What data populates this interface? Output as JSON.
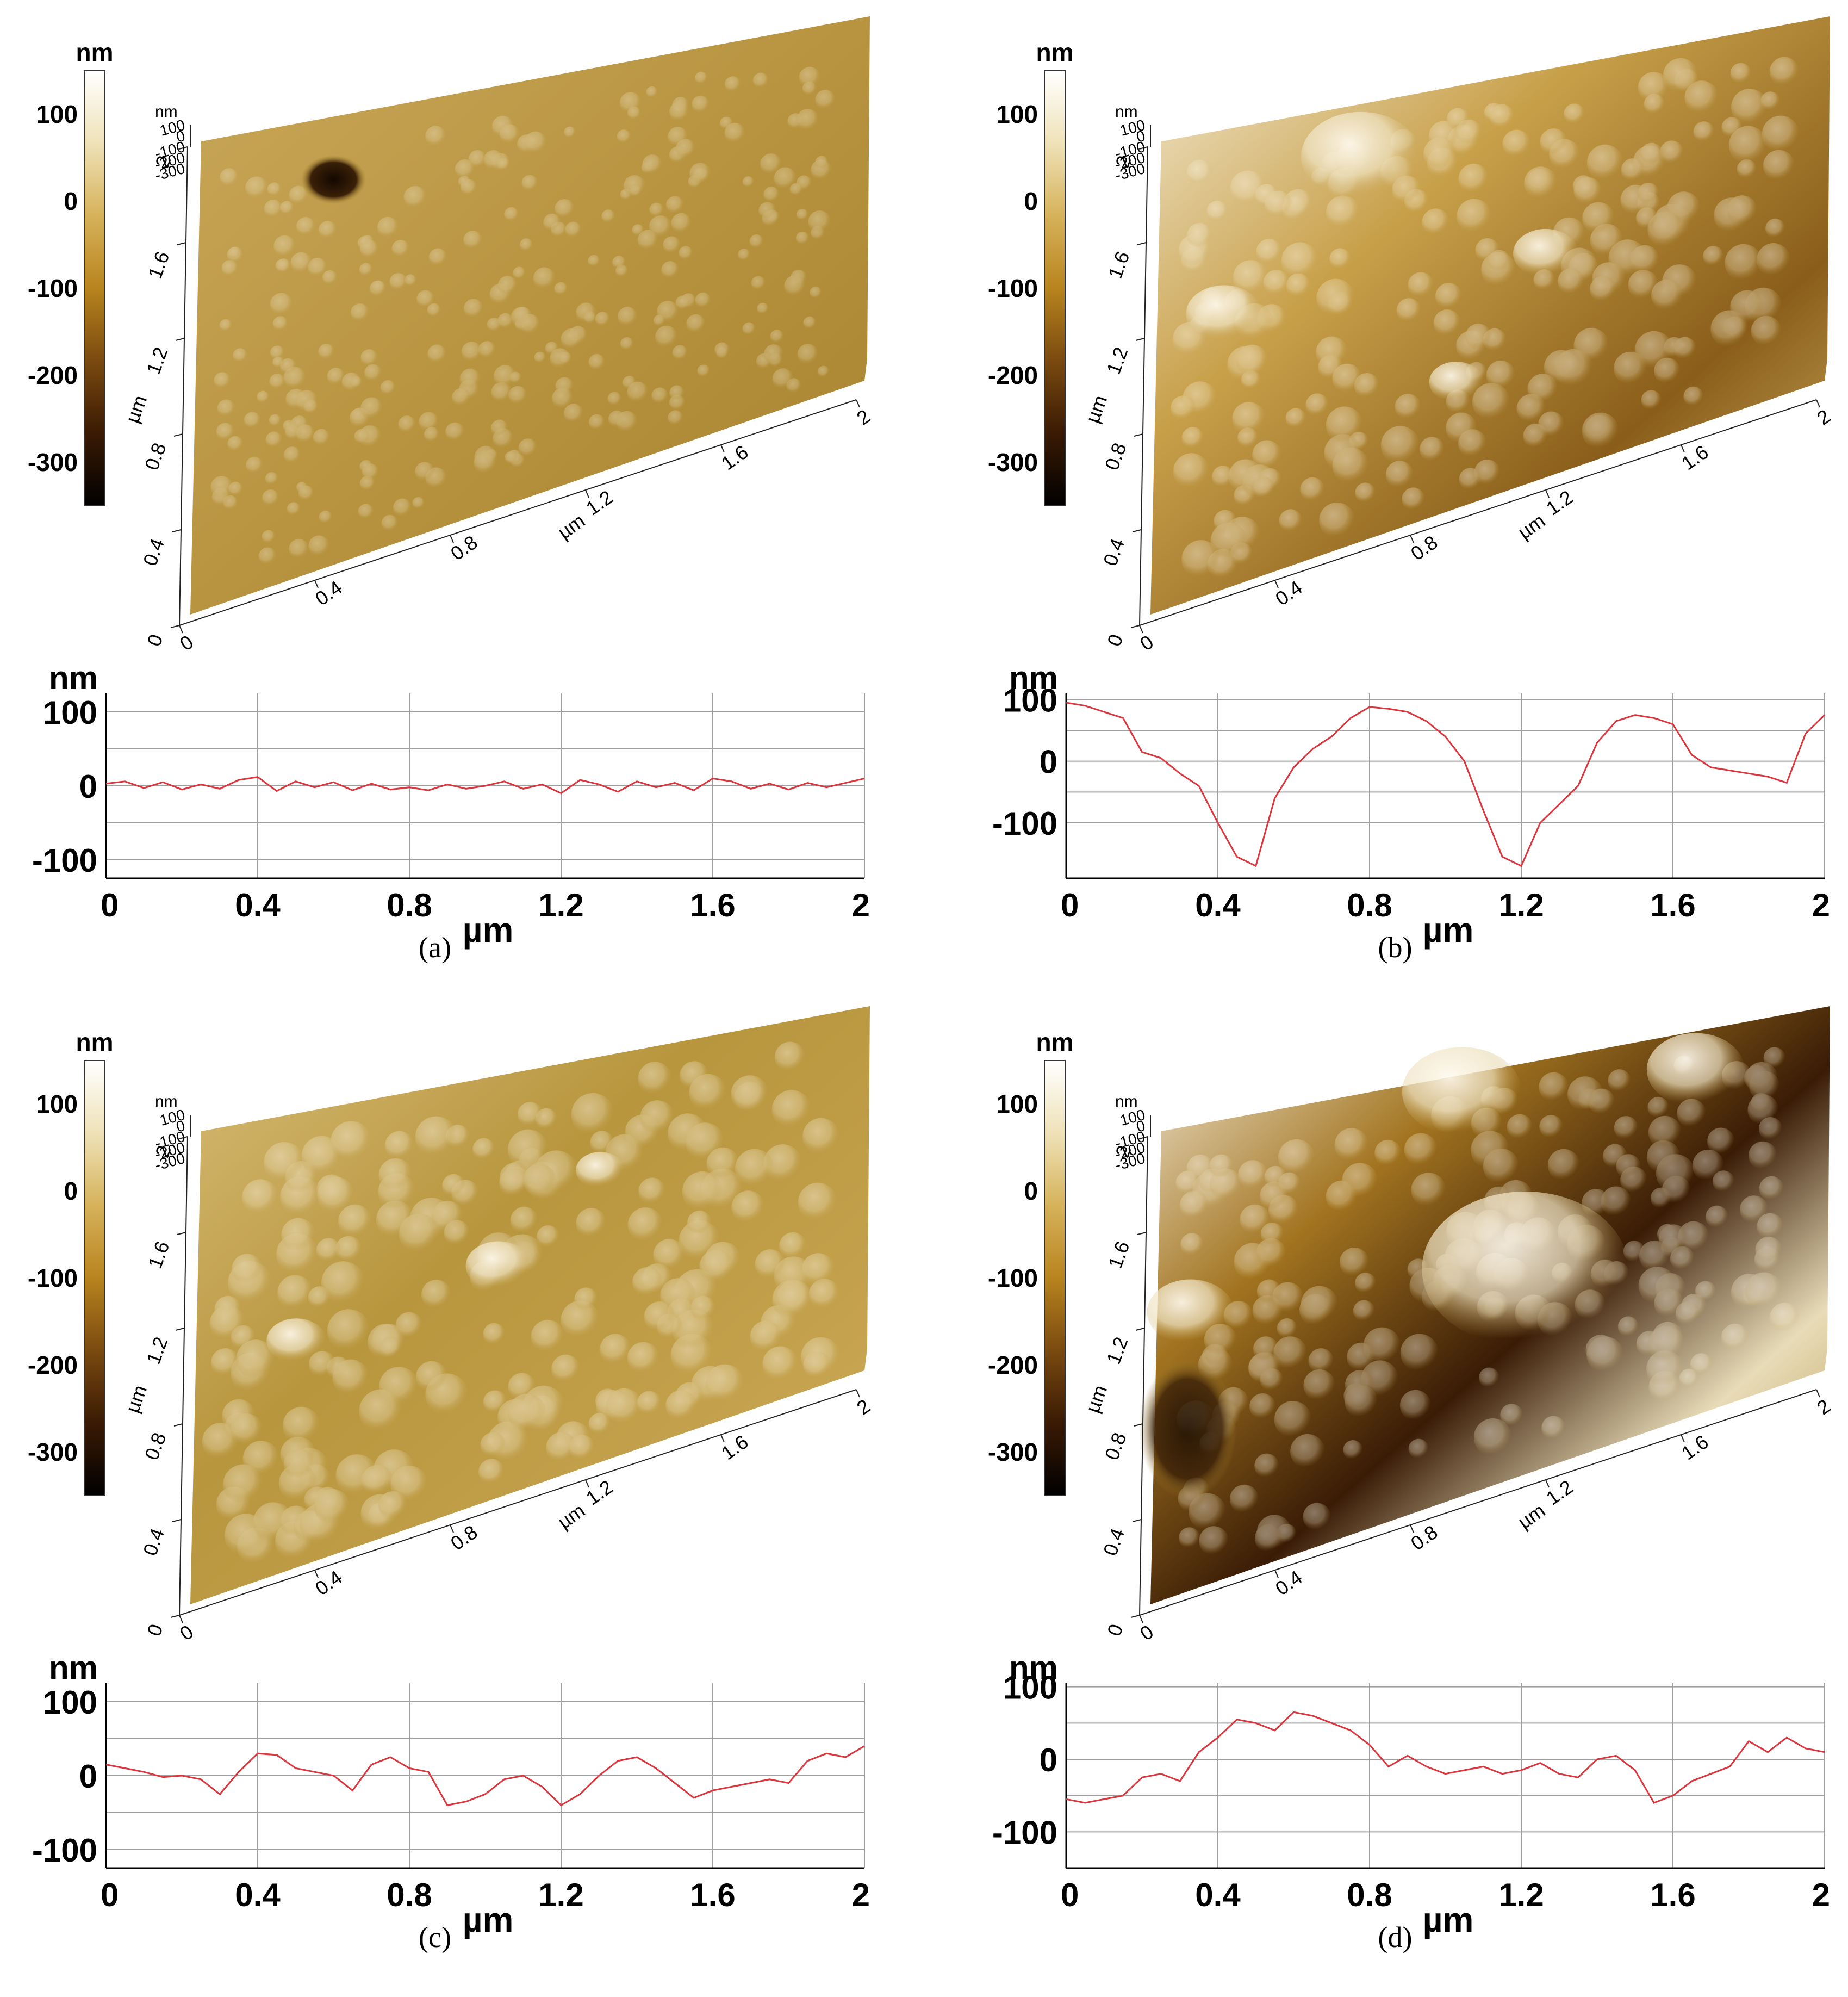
{
  "colorbar": {
    "unit": "nm",
    "ticks": [
      100,
      0,
      -100,
      -200,
      -300
    ],
    "range": [
      -350,
      150
    ],
    "colors": [
      "#000000",
      "#3a1a04",
      "#7a4a10",
      "#b8841e",
      "#d6b25a",
      "#efe2b8",
      "#ffffff"
    ]
  },
  "surface_axes": {
    "unit": "µm",
    "ticks": [
      "0",
      "0.4",
      "0.8",
      "1.2",
      "1.6",
      "2"
    ],
    "z_unit": "nm",
    "z_ticks": [
      "100",
      "0",
      "-100",
      "-200",
      "-300"
    ]
  },
  "colors": {
    "profile_line": "#d9363e",
    "grid": "#a0a0a0",
    "axis": "#000000",
    "surface_base": "#b08a32"
  },
  "panels": [
    {
      "caption": "(a)",
      "surface": "flat surface with a single pit",
      "roughness": "low"
    },
    {
      "caption": "(b)",
      "surface": "large globular clusters with deep valleys",
      "roughness": "high"
    },
    {
      "caption": "(c)",
      "surface": "globular grains of medium size",
      "roughness": "medium"
    },
    {
      "caption": "(d)",
      "surface": "terraced surface with bright plateau",
      "roughness": "high"
    }
  ],
  "chart_data": [
    {
      "type": "line",
      "panel": "(a)",
      "ylabel": "nm",
      "xlabel": "µm",
      "xlim": [
        0,
        2
      ],
      "ylim": [
        -125,
        125
      ],
      "yticks": [
        100,
        0,
        -100
      ],
      "xticks": [
        0,
        0.4,
        0.8,
        1.2,
        1.6,
        2
      ],
      "grid": true,
      "x": [
        0,
        0.05,
        0.1,
        0.15,
        0.2,
        0.25,
        0.3,
        0.35,
        0.4,
        0.45,
        0.5,
        0.55,
        0.6,
        0.65,
        0.7,
        0.75,
        0.8,
        0.85,
        0.9,
        0.95,
        1.0,
        1.05,
        1.1,
        1.15,
        1.2,
        1.25,
        1.3,
        1.35,
        1.4,
        1.45,
        1.5,
        1.55,
        1.6,
        1.65,
        1.7,
        1.75,
        1.8,
        1.85,
        1.9,
        1.95,
        2.0
      ],
      "values": [
        3,
        6,
        -3,
        5,
        -5,
        2,
        -4,
        8,
        12,
        -7,
        6,
        -2,
        5,
        -6,
        3,
        -5,
        -2,
        -6,
        2,
        -4,
        0,
        6,
        -4,
        2,
        -10,
        8,
        2,
        -8,
        6,
        -2,
        4,
        -6,
        10,
        6,
        -4,
        3,
        -5,
        4,
        -2,
        4,
        10
      ]
    },
    {
      "type": "line",
      "panel": "(b)",
      "ylabel": "nm",
      "xlabel": "µm",
      "xlim": [
        0,
        2
      ],
      "ylim": [
        -190,
        110
      ],
      "yticks": [
        100,
        0,
        -100
      ],
      "xticks": [
        0,
        0.4,
        0.8,
        1.2,
        1.6,
        2
      ],
      "grid": true,
      "x": [
        0,
        0.05,
        0.1,
        0.15,
        0.2,
        0.25,
        0.3,
        0.35,
        0.4,
        0.45,
        0.5,
        0.55,
        0.6,
        0.65,
        0.7,
        0.75,
        0.8,
        0.85,
        0.9,
        0.95,
        1.0,
        1.05,
        1.1,
        1.15,
        1.2,
        1.25,
        1.3,
        1.35,
        1.4,
        1.45,
        1.5,
        1.55,
        1.6,
        1.65,
        1.7,
        1.75,
        1.8,
        1.85,
        1.9,
        1.95,
        2.0
      ],
      "values": [
        95,
        90,
        80,
        70,
        15,
        5,
        -20,
        -40,
        -100,
        -155,
        -170,
        -60,
        -10,
        20,
        40,
        70,
        88,
        85,
        80,
        65,
        40,
        0,
        -80,
        -155,
        -170,
        -100,
        -70,
        -40,
        30,
        65,
        75,
        70,
        60,
        10,
        -10,
        -15,
        -20,
        -25,
        -35,
        45,
        75
      ]
    },
    {
      "type": "line",
      "panel": "(c)",
      "ylabel": "nm",
      "xlabel": "µm",
      "xlim": [
        0,
        2
      ],
      "ylim": [
        -125,
        125
      ],
      "yticks": [
        100,
        0,
        -100
      ],
      "xticks": [
        0,
        0.4,
        0.8,
        1.2,
        1.6,
        2
      ],
      "grid": true,
      "x": [
        0,
        0.05,
        0.1,
        0.15,
        0.2,
        0.25,
        0.3,
        0.35,
        0.4,
        0.45,
        0.5,
        0.55,
        0.6,
        0.65,
        0.7,
        0.75,
        0.8,
        0.85,
        0.9,
        0.95,
        1.0,
        1.05,
        1.1,
        1.15,
        1.2,
        1.25,
        1.3,
        1.35,
        1.4,
        1.45,
        1.5,
        1.55,
        1.6,
        1.65,
        1.7,
        1.75,
        1.8,
        1.85,
        1.9,
        1.95,
        2.0
      ],
      "values": [
        15,
        10,
        5,
        -2,
        0,
        -5,
        -25,
        5,
        30,
        28,
        10,
        5,
        0,
        -20,
        15,
        25,
        10,
        5,
        -40,
        -35,
        -25,
        -5,
        0,
        -15,
        -40,
        -25,
        0,
        20,
        25,
        10,
        -10,
        -30,
        -20,
        -15,
        -10,
        -5,
        -10,
        20,
        30,
        25,
        40
      ]
    },
    {
      "type": "line",
      "panel": "(d)",
      "ylabel": "nm",
      "xlabel": "µm",
      "xlim": [
        0,
        2
      ],
      "ylim": [
        -150,
        105
      ],
      "yticks": [
        100,
        0,
        -100
      ],
      "xticks": [
        0,
        0.4,
        0.8,
        1.2,
        1.6,
        2
      ],
      "grid": true,
      "x": [
        0,
        0.05,
        0.1,
        0.15,
        0.2,
        0.25,
        0.3,
        0.35,
        0.4,
        0.45,
        0.5,
        0.55,
        0.6,
        0.65,
        0.7,
        0.75,
        0.8,
        0.85,
        0.9,
        0.95,
        1.0,
        1.05,
        1.1,
        1.15,
        1.2,
        1.25,
        1.3,
        1.35,
        1.4,
        1.45,
        1.5,
        1.55,
        1.6,
        1.65,
        1.7,
        1.75,
        1.8,
        1.85,
        1.9,
        1.95,
        2.0
      ],
      "values": [
        -55,
        -60,
        -55,
        -50,
        -25,
        -20,
        -30,
        10,
        30,
        55,
        50,
        40,
        65,
        60,
        50,
        40,
        20,
        -10,
        5,
        -10,
        -20,
        -15,
        -10,
        -20,
        -15,
        -5,
        -20,
        -25,
        0,
        5,
        -15,
        -60,
        -50,
        -30,
        -20,
        -10,
        25,
        10,
        30,
        15,
        10
      ]
    }
  ]
}
